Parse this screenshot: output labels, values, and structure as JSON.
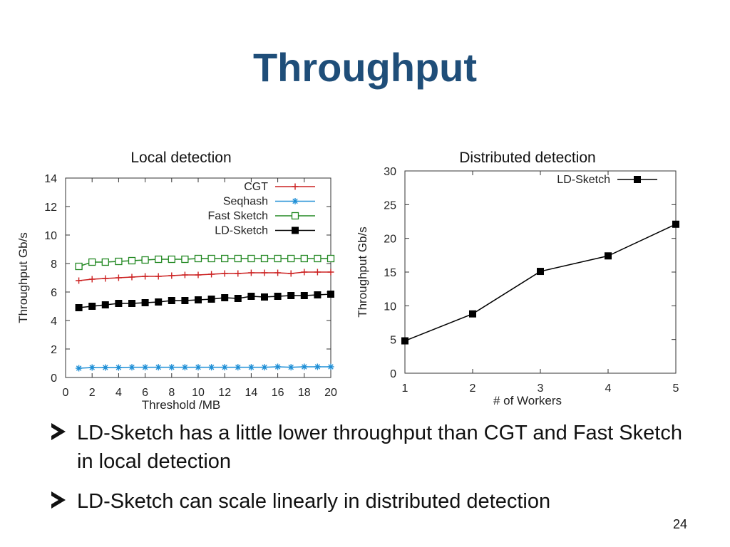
{
  "slide": {
    "title": "Throughput",
    "page_number": "24"
  },
  "bullets": [
    {
      "text": "LD-Sketch has a little lower throughput than CGT and Fast Sketch in local detection"
    },
    {
      "text": "LD-Sketch can scale linearly in distributed detection"
    }
  ],
  "chart_data": [
    {
      "type": "line",
      "title": "Local detection",
      "xlabel": "Threshold /MB",
      "ylabel": "Throughput Gb/s",
      "xlim": [
        0,
        20
      ],
      "ylim": [
        0,
        14
      ],
      "xticks": [
        0,
        2,
        4,
        6,
        8,
        10,
        12,
        14,
        16,
        18,
        20
      ],
      "yticks": [
        0,
        2,
        4,
        6,
        8,
        10,
        12,
        14
      ],
      "grid": false,
      "legend": "top-right",
      "x": [
        1,
        2,
        3,
        4,
        5,
        6,
        7,
        8,
        9,
        10,
        11,
        12,
        13,
        14,
        15,
        16,
        17,
        18,
        19,
        20
      ],
      "series": [
        {
          "name": "CGT",
          "color": "#cc2222",
          "marker": "plus",
          "values": [
            6.8,
            6.9,
            6.95,
            7.0,
            7.05,
            7.1,
            7.1,
            7.15,
            7.2,
            7.2,
            7.25,
            7.3,
            7.3,
            7.35,
            7.35,
            7.35,
            7.3,
            7.4,
            7.4,
            7.4
          ]
        },
        {
          "name": "Seqhash",
          "color": "#1f8fd6",
          "marker": "asterisk",
          "values": [
            0.65,
            0.7,
            0.7,
            0.7,
            0.72,
            0.72,
            0.72,
            0.72,
            0.72,
            0.72,
            0.72,
            0.72,
            0.72,
            0.72,
            0.72,
            0.75,
            0.72,
            0.75,
            0.75,
            0.75
          ]
        },
        {
          "name": "Fast Sketch",
          "color": "#228822",
          "marker": "open-square",
          "values": [
            7.8,
            8.1,
            8.1,
            8.15,
            8.2,
            8.25,
            8.3,
            8.3,
            8.3,
            8.35,
            8.35,
            8.35,
            8.35,
            8.35,
            8.35,
            8.35,
            8.35,
            8.35,
            8.35,
            8.35
          ]
        },
        {
          "name": "LD-Sketch",
          "color": "#000000",
          "marker": "filled-square",
          "values": [
            4.9,
            5.0,
            5.1,
            5.2,
            5.2,
            5.25,
            5.3,
            5.4,
            5.4,
            5.45,
            5.5,
            5.6,
            5.55,
            5.7,
            5.65,
            5.7,
            5.75,
            5.75,
            5.8,
            5.85
          ]
        }
      ]
    },
    {
      "type": "line",
      "title": "Distributed detection",
      "xlabel": "# of Workers",
      "ylabel": "Throughput Gb/s",
      "xlim": [
        1,
        5
      ],
      "ylim": [
        0,
        30
      ],
      "xticks": [
        1,
        2,
        3,
        4,
        5
      ],
      "yticks": [
        0,
        5,
        10,
        15,
        20,
        25,
        30
      ],
      "grid": false,
      "legend": "top-right",
      "x": [
        1,
        2,
        3,
        4,
        5
      ],
      "series": [
        {
          "name": "LD-Sketch",
          "color": "#000000",
          "marker": "filled-square",
          "values": [
            4.8,
            8.8,
            15.1,
            17.4,
            22.1
          ]
        }
      ]
    }
  ]
}
